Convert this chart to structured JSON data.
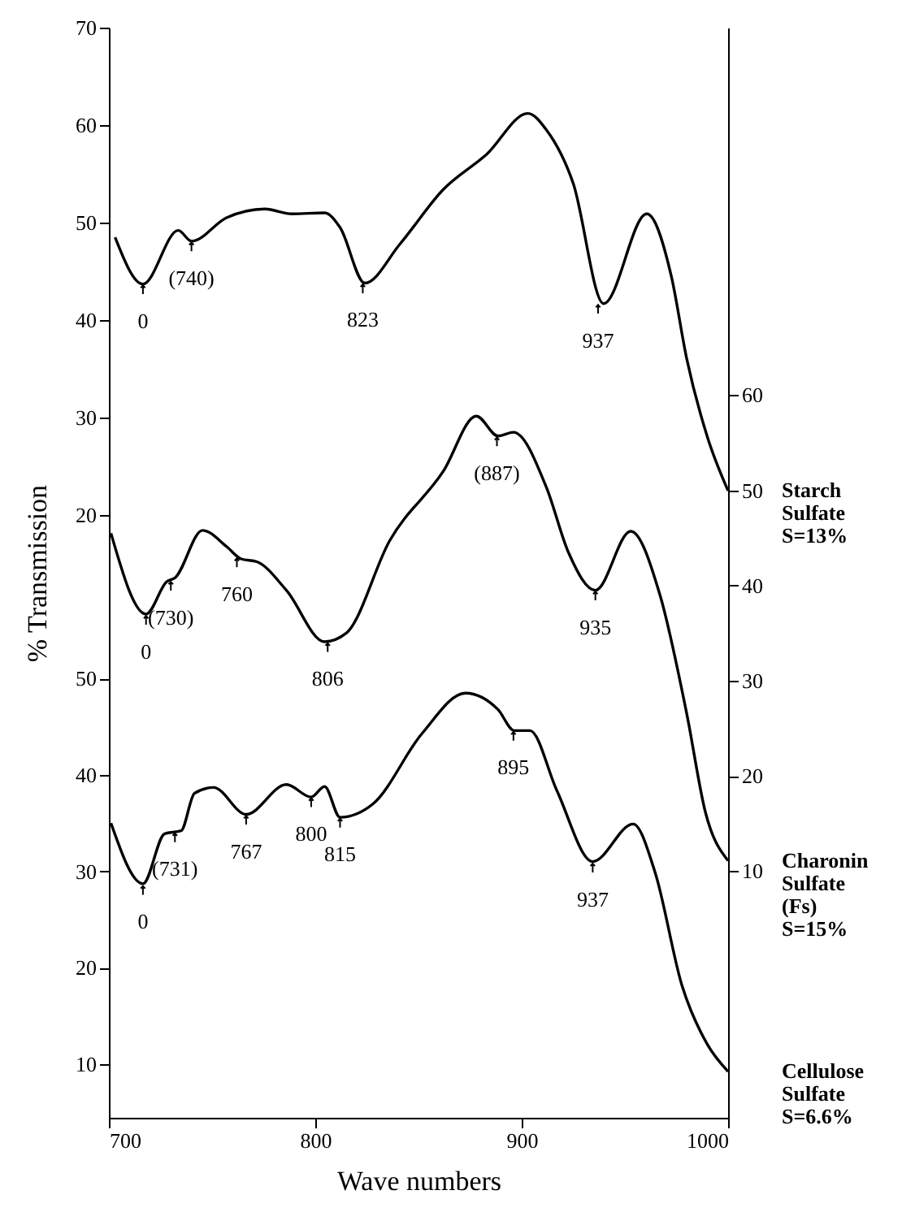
{
  "chart_data": {
    "type": "line",
    "xlabel": "Wave numbers",
    "ylabel": "% Transmission",
    "xlim": [
      700,
      1000
    ],
    "xticks": [
      700,
      800,
      900,
      1000
    ],
    "ylim": [
      -41.8,
      70
    ],
    "yticks": [
      20,
      30,
      40,
      50,
      60,
      70
    ],
    "y2lim": [
      -15.9,
      98.6
    ],
    "y2ticks": [
      10,
      20,
      30,
      40,
      50,
      60
    ],
    "y3lim": [
      4.4,
      117.6
    ],
    "y3ticks": [
      10,
      20,
      30,
      40,
      50
    ],
    "line_style": "solid",
    "series": [
      {
        "name": "Starch Sulfate S=13%",
        "color": "#000000",
        "x": [
          703,
          716.5,
          733.6,
          740,
          757,
          775.6,
          788.7,
          804.5,
          812,
          824,
          841,
          862,
          883,
          903,
          912,
          925,
          939.7,
          960.6,
          972.5,
          980,
          990,
          1000
        ],
        "values": [
          48.5,
          43.7,
          49.2,
          48.1,
          50.5,
          51.4,
          50.9,
          51.0,
          49.5,
          43.8,
          47.8,
          53.4,
          57,
          61.2,
          59.5,
          54,
          41.7,
          50.9,
          44.5,
          36,
          28,
          22.5
        ]
      },
      {
        "name": "Charonin Sulfate (Fs) S=15%",
        "color": "#000000",
        "axis": "y2",
        "x": [
          701,
          718,
          728,
          732,
          745.4,
          757,
          764,
          771.7,
          786,
          804.5,
          815,
          836,
          862,
          878,
          888.6,
          896,
          912,
          922.6,
          935.7,
          952.8,
          967,
          980,
          989,
          1000
        ],
        "values": [
          45.5,
          37.0,
          40.4,
          40.8,
          45.8,
          44.1,
          42.8,
          42.5,
          39.5,
          34.1,
          35.0,
          44.7,
          52.0,
          57.8,
          55.7,
          56.1,
          50.3,
          43.5,
          39.5,
          45.7,
          39.0,
          26.5,
          16.2,
          11.1
        ]
      },
      {
        "name": "Cellulose Sulfate S=6.6%",
        "color": "#000000",
        "axis": "y3",
        "x": [
          701,
          716.5,
          727,
          735,
          741.5,
          750.7,
          766.5,
          786,
          798,
          804.5,
          812,
          828,
          851.7,
          872.7,
          888.5,
          896.4,
          904,
          917,
          934.4,
          954,
          964.6,
          977.7,
          990,
          1000
        ],
        "values": [
          35.0,
          28.7,
          33.9,
          34.2,
          38.1,
          38.7,
          35.9,
          39.0,
          37.7,
          38.8,
          35.6,
          37.0,
          44.3,
          48.5,
          46.8,
          44.6,
          44.6,
          38.4,
          31.0,
          34.9,
          29.9,
          18.1,
          12,
          9.2
        ]
      }
    ],
    "annotations": [
      {
        "text": "0",
        "x": 716.5,
        "y": 43.7
      },
      {
        "text": "(740)",
        "x": 740,
        "y": 48.1
      },
      {
        "text": "823",
        "x": 823,
        "y": 43.8
      },
      {
        "text": "937",
        "x": 937,
        "y": 41.7
      },
      {
        "text": "0",
        "x": 718,
        "y": 9.8
      },
      {
        "text": "(730)",
        "x": 730,
        "y": 13.3
      },
      {
        "text": "760",
        "x": 762,
        "y": 15.7
      },
      {
        "text": "806",
        "x": 806,
        "y": 7.0
      },
      {
        "text": "(887)",
        "x": 888,
        "y": 28.1
      },
      {
        "text": "935",
        "x": 935.7,
        "y": 12.3
      },
      {
        "text": "0",
        "x": 716.5,
        "y": -17.9
      },
      {
        "text": "(731)",
        "x": 732,
        "y": -12.5
      },
      {
        "text": "767",
        "x": 766.5,
        "y": -10.7
      },
      {
        "text": "800",
        "x": 798,
        "y": -8.9
      },
      {
        "text": "815",
        "x": 812,
        "y": -11.0
      },
      {
        "text": "895",
        "x": 896,
        "y": -2.1
      },
      {
        "text": "937",
        "x": 934.4,
        "y": -15.6
      }
    ]
  }
}
